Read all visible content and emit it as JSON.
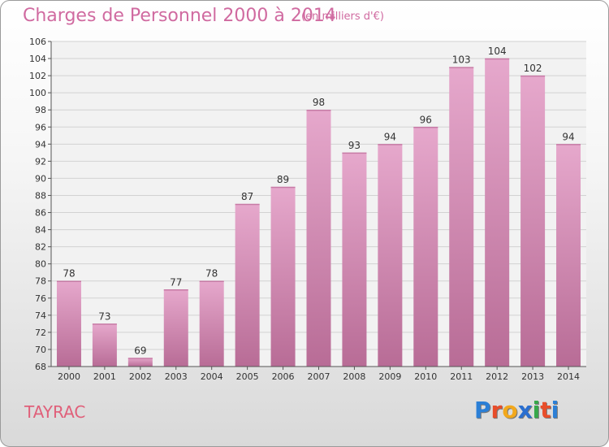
{
  "title": "Charges de Personnel 2000 à 2014",
  "unit": "(en milliers d'€)",
  "commune": "TAYRAC",
  "logo": {
    "letters": [
      "P",
      "r",
      "o",
      "x",
      "i",
      "t",
      "i"
    ],
    "colors": [
      "#2b7fd6",
      "#e84d2a",
      "#f2a81c",
      "#2a6fd0",
      "#37a84a",
      "#e84d2a",
      "#2b7fd6"
    ]
  },
  "colors": {
    "bar_top": "#e6a8cc",
    "bar_bottom": "#b86c96",
    "title": "#d06aa0"
  },
  "chart_data": {
    "type": "bar",
    "categories": [
      "2000",
      "2001",
      "2002",
      "2003",
      "2004",
      "2005",
      "2006",
      "2007",
      "2008",
      "2009",
      "2010",
      "2011",
      "2012",
      "2013",
      "2014"
    ],
    "values": [
      78,
      73,
      69,
      77,
      78,
      87,
      89,
      98,
      93,
      94,
      96,
      103,
      104,
      102,
      94
    ],
    "ylim": [
      68,
      106
    ],
    "yticks": [
      68,
      70,
      72,
      74,
      76,
      78,
      80,
      82,
      84,
      86,
      88,
      90,
      92,
      94,
      96,
      98,
      100,
      102,
      104,
      106
    ],
    "grid": true,
    "data_labels": true
  }
}
